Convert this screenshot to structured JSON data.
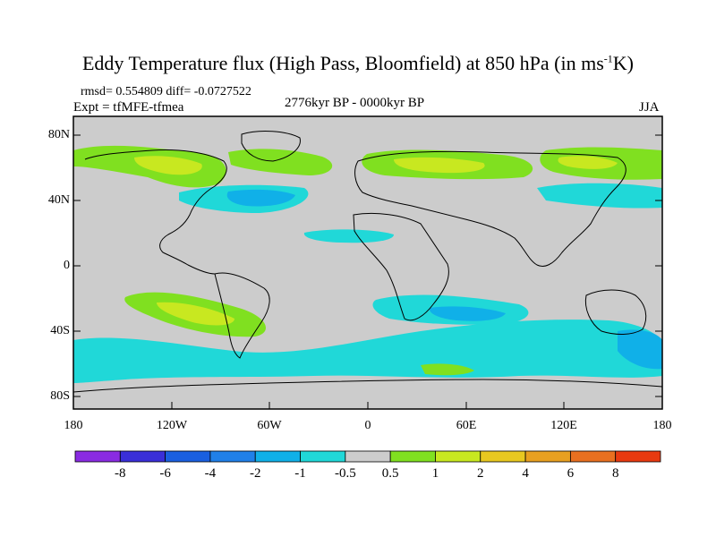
{
  "title_main": "Eddy Temperature flux (High Pass, Bloomfield) at 850 hPa (in ms",
  "title_sup": "-1",
  "title_end": "K)",
  "stats": "rmsd= 0.554809 diff= -0.0727522",
  "experiment": "Expt = tfMFE-tfmea",
  "period": "2776kyr BP - 0000kyr BP",
  "season": "JJA",
  "map": {
    "lat_ticks": [
      "80N",
      "40N",
      "0",
      "40S",
      "80S"
    ],
    "lon_ticks": [
      "180",
      "120W",
      "60W",
      "0",
      "60E",
      "120E",
      "180"
    ],
    "background_color": "#cccccc",
    "coast_color": "#000000"
  },
  "colorbar": {
    "colors": [
      "#8a2be2",
      "#3a2fd8",
      "#1a5fe0",
      "#2080e8",
      "#10b0e8",
      "#20d8d8",
      "#cccccc",
      "#80e020",
      "#c8e820",
      "#e8c820",
      "#e8a020",
      "#e87020",
      "#e83a10"
    ],
    "labels": [
      "-8",
      "-6",
      "-4",
      "-2",
      "-1",
      "-0.5",
      "0.5",
      "1",
      "2",
      "4",
      "6",
      "8"
    ]
  }
}
